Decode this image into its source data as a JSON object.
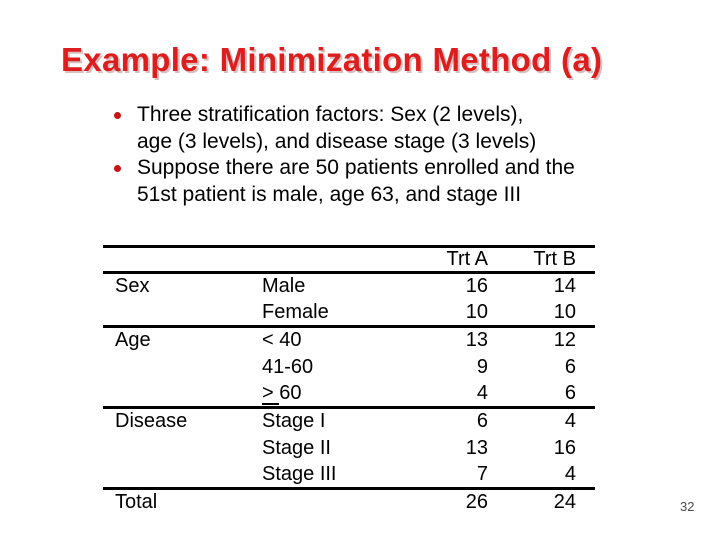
{
  "slide": {
    "title": "Example: Minimization Method (a)",
    "page_number": "32"
  },
  "bullets": [
    {
      "lines": [
        "Three stratification factors: Sex (2 levels),",
        "age (3 levels), and disease stage (3 levels)"
      ]
    },
    {
      "lines": [
        "Suppose there are 50 patients enrolled and the",
        "51st patient is male, age 63, and stage III"
      ]
    }
  ],
  "table": {
    "headers": {
      "col_group": "",
      "col_level": "",
      "trt_a": "Trt A",
      "trt_b": "Trt B"
    },
    "rows": [
      {
        "group": "Sex",
        "level": "Male",
        "trt_a": "16",
        "trt_b": "14",
        "rule_below": false
      },
      {
        "group": "",
        "level": "Female",
        "trt_a": "10",
        "trt_b": "10",
        "rule_below": true
      },
      {
        "group": "Age",
        "level": "< 40",
        "trt_a": "13",
        "trt_b": "12",
        "rule_below": false
      },
      {
        "group": "",
        "level": "41-60",
        "trt_a": "9",
        "trt_b": "6",
        "rule_below": false
      },
      {
        "group": "",
        "level_parts": [
          {
            "text": "> ",
            "underline": true
          },
          {
            "text": "60",
            "underline": false
          }
        ],
        "trt_a": "4",
        "trt_b": "6",
        "rule_below": true
      },
      {
        "group": "Disease",
        "level": "Stage I",
        "trt_a": "6",
        "trt_b": "4",
        "rule_below": false
      },
      {
        "group": "",
        "level": "Stage II",
        "trt_a": "13",
        "trt_b": "16",
        "rule_below": false
      },
      {
        "group": "",
        "level": "Stage III",
        "trt_a": "7",
        "trt_b": "4",
        "rule_below": true
      },
      {
        "group": "Total",
        "level": "",
        "trt_a": "26",
        "trt_b": "24",
        "rule_below": false
      }
    ]
  },
  "colors": {
    "title_red": "#dd1e1e",
    "title_shadow": "#d9bfbf",
    "bullet_red": "#cc1111",
    "text": "#000000",
    "page_number_gray": "#4a4a4a"
  }
}
